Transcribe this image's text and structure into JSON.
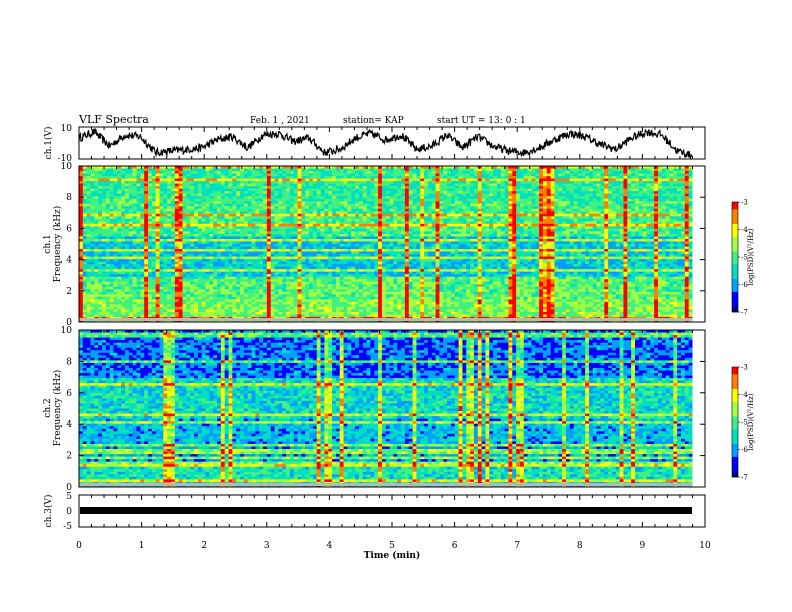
{
  "header": {
    "title": "VLF Spectra",
    "date": "Feb. 1 , 2021",
    "station": "station= KAP",
    "start": "start  UT =   13: 0  : 1"
  },
  "colors": {
    "trace": "#000000",
    "colormap": [
      "#000080",
      "#0000ff",
      "#00a0ff",
      "#00e0c0",
      "#40f080",
      "#a0ff40",
      "#ffff00",
      "#ff8000",
      "#ff0000",
      "#c0c0c0"
    ]
  },
  "chart_data": [
    {
      "type": "line",
      "ylabel": "ch.1(V)",
      "ylim": [
        -10,
        10
      ],
      "ytick_labels": [
        "-10",
        "10"
      ],
      "xlim": [
        0,
        10
      ],
      "series": [
        {
          "values_note_free": true,
          "y_envelope": [
            3,
            7,
            -2,
            5,
            4,
            -6,
            -5,
            -4,
            -3,
            2,
            4,
            -3,
            5,
            6,
            1,
            3,
            -6,
            -4,
            3,
            6,
            2,
            5,
            -4,
            -2,
            5,
            -3,
            4,
            -2,
            -5,
            -6,
            -3,
            2,
            6,
            4,
            -1,
            -4,
            3,
            7,
            5,
            -5,
            -8
          ]
        }
      ]
    },
    {
      "type": "heatmap",
      "ylabel": "ch.1\nFrequency (kHz)",
      "xlim": [
        0,
        10
      ],
      "ylim": [
        0,
        10
      ],
      "ytick_labels": [
        "0",
        "2",
        "4",
        "6",
        "8",
        "10"
      ],
      "colorbar": {
        "label": "log(PSD)(V²/Hz)",
        "range": [
          -7,
          -3
        ],
        "tick_labels": [
          "-3",
          "-4",
          "-5",
          "-6",
          "-7"
        ]
      }
    },
    {
      "type": "heatmap",
      "ylabel": "ch.2\nFrequency (kHz)",
      "xlim": [
        0,
        10
      ],
      "ylim": [
        0,
        10
      ],
      "ytick_labels": [
        "0",
        "2",
        "4",
        "6",
        "8",
        "10"
      ],
      "colorbar": {
        "label": "log(PSD)(V²/Hz)",
        "range": [
          -7,
          -3
        ],
        "tick_labels": [
          "-3",
          "-4",
          "-5",
          "-6",
          "-7"
        ]
      }
    },
    {
      "type": "line",
      "ylabel": "ch.3(V)",
      "ylim": [
        -5,
        5
      ],
      "ytick_labels": [
        "-5",
        "0",
        "5"
      ],
      "xlim": [
        0,
        10
      ],
      "xlabel": "Time  (min)",
      "xtick_labels": [
        "0",
        "1",
        "2",
        "3",
        "4",
        "5",
        "6",
        "7",
        "8",
        "9",
        "10"
      ],
      "series": [
        {
          "constant_level": -1,
          "band": [
            -1.6,
            -0.4
          ]
        }
      ]
    }
  ]
}
